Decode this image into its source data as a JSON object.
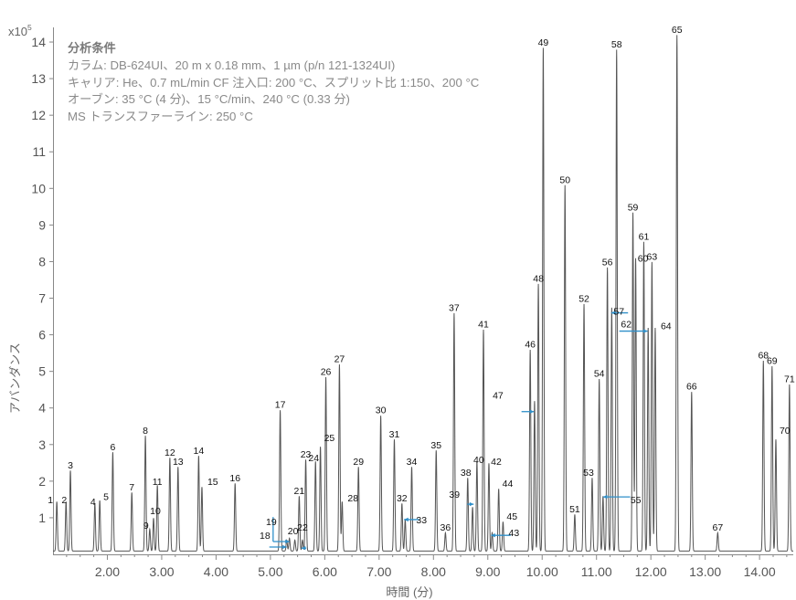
{
  "chart_data": {
    "type": "line",
    "y_exponent_label": "x10",
    "y_exponent": "5",
    "xlabel": "時間 (分)",
    "ylabel": "アバンダンス",
    "xlim": [
      1.0,
      14.62
    ],
    "ylim": [
      0,
      14.4
    ],
    "x_ticks": [
      2.0,
      3.0,
      4.0,
      5.0,
      6.0,
      7.0,
      8.0,
      9.0,
      10.0,
      11.0,
      12.0,
      13.0,
      14.0
    ],
    "x_tick_labels": [
      "2.00",
      "3.00",
      "4.00",
      "5.00",
      "6.00",
      "7.00",
      "8.00",
      "9.00",
      "10.00",
      "11.00",
      "12.00",
      "13.00",
      "14.00"
    ],
    "y_ticks": [
      1,
      2,
      3,
      4,
      5,
      6,
      7,
      8,
      9,
      10,
      11,
      12,
      13,
      14
    ],
    "y_tick_labels": [
      "1",
      "2",
      "3",
      "4",
      "5",
      "6",
      "7",
      "8",
      "9",
      "10",
      "11",
      "12",
      "13",
      "14"
    ],
    "line_color": "#555555",
    "arrow_color": "#2f8fc9",
    "conditions": {
      "title": "分析条件",
      "lines": [
        "カラム: DB-624UI、20 m x 0.18 mm、1 µm (p/n 121-1324UI)",
        "キャリア: He、0.7 mL/min CF 注入口: 200 °C、スプリット比 1:150、200 °C",
        "オーブン: 35 °C (4 分)、15 °C/min、240 °C (0.33 分)",
        "MS トランスファーライン: 250 °C"
      ]
    },
    "peaks": [
      {
        "label": "1",
        "rt": 1.07,
        "height": 1.35
      },
      {
        "label": "2",
        "rt": 1.24,
        "height": 1.35
      },
      {
        "label": "3",
        "rt": 1.32,
        "height": 2.2
      },
      {
        "label": "4",
        "rt": 1.77,
        "height": 1.3
      },
      {
        "label": "5",
        "rt": 1.86,
        "height": 1.38
      },
      {
        "label": "6",
        "rt": 2.1,
        "height": 2.7
      },
      {
        "label": "7",
        "rt": 2.45,
        "height": 1.6
      },
      {
        "label": "8",
        "rt": 2.7,
        "height": 3.15
      },
      {
        "label": "9",
        "rt": 2.78,
        "height": 0.6
      },
      {
        "label": "10",
        "rt": 2.85,
        "height": 0.9
      },
      {
        "label": "11",
        "rt": 2.92,
        "height": 1.8
      },
      {
        "label": "12",
        "rt": 3.15,
        "height": 2.55
      },
      {
        "label": "13",
        "rt": 3.3,
        "height": 2.3
      },
      {
        "label": "14",
        "rt": 3.68,
        "height": 2.6
      },
      {
        "label": "15",
        "rt": 3.74,
        "height": 1.75
      },
      {
        "label": "16",
        "rt": 4.35,
        "height": 1.85
      },
      {
        "label": "17",
        "rt": 5.18,
        "height": 3.85
      },
      {
        "label": "18",
        "rt": 5.3,
        "height": 0.3
      },
      {
        "label": "19",
        "rt": 5.35,
        "height": 0.35
      },
      {
        "label": "20",
        "rt": 5.45,
        "height": 0.3
      },
      {
        "label": "21",
        "rt": 5.53,
        "height": 1.5
      },
      {
        "label": "22",
        "rt": 5.59,
        "height": 0.3
      },
      {
        "label": "23",
        "rt": 5.65,
        "height": 2.5
      },
      {
        "label": "24",
        "rt": 5.83,
        "height": 2.45
      },
      {
        "label": "25",
        "rt": 5.92,
        "height": 2.85
      },
      {
        "label": "26",
        "rt": 6.02,
        "height": 4.75
      },
      {
        "label": "27",
        "rt": 6.27,
        "height": 5.1
      },
      {
        "label": "28",
        "rt": 6.32,
        "height": 1.35
      },
      {
        "label": "29",
        "rt": 6.62,
        "height": 2.3
      },
      {
        "label": "30",
        "rt": 7.03,
        "height": 3.7
      },
      {
        "label": "31",
        "rt": 7.28,
        "height": 3.05
      },
      {
        "label": "32",
        "rt": 7.42,
        "height": 1.3
      },
      {
        "label": "33",
        "rt": 7.48,
        "height": 0.85
      },
      {
        "label": "34",
        "rt": 7.6,
        "height": 2.3
      },
      {
        "label": "35",
        "rt": 8.05,
        "height": 2.75
      },
      {
        "label": "36",
        "rt": 8.22,
        "height": 0.5
      },
      {
        "label": "37",
        "rt": 8.38,
        "height": 6.5
      },
      {
        "label": "38",
        "rt": 8.63,
        "height": 2.0
      },
      {
        "label": "39",
        "rt": 8.72,
        "height": 1.2
      },
      {
        "label": "40",
        "rt": 8.8,
        "height": 2.45
      },
      {
        "label": "41",
        "rt": 8.92,
        "height": 6.05
      },
      {
        "label": "42",
        "rt": 9.02,
        "height": 2.4
      },
      {
        "label": "43",
        "rt": 9.08,
        "height": 0.5
      },
      {
        "label": "44",
        "rt": 9.2,
        "height": 1.7
      },
      {
        "label": "45",
        "rt": 9.28,
        "height": 0.8
      },
      {
        "label": "46",
        "rt": 9.78,
        "height": 5.5
      },
      {
        "label": "47",
        "rt": 9.86,
        "height": 4.1
      },
      {
        "label": "48",
        "rt": 9.93,
        "height": 7.3
      },
      {
        "label": "49",
        "rt": 10.02,
        "height": 13.75
      },
      {
        "label": "50",
        "rt": 10.42,
        "height": 10.0
      },
      {
        "label": "51",
        "rt": 10.6,
        "height": 1.0
      },
      {
        "label": "52",
        "rt": 10.77,
        "height": 6.75
      },
      {
        "label": "53",
        "rt": 10.92,
        "height": 2.0
      },
      {
        "label": "54",
        "rt": 11.05,
        "height": 4.7
      },
      {
        "label": "55",
        "rt": 11.12,
        "height": 1.5
      },
      {
        "label": "56",
        "rt": 11.2,
        "height": 7.75
      },
      {
        "label": "57",
        "rt": 11.28,
        "height": 6.65
      },
      {
        "label": "58",
        "rt": 11.37,
        "height": 13.7
      },
      {
        "label": "59",
        "rt": 11.67,
        "height": 9.25
      },
      {
        "label": "60",
        "rt": 11.72,
        "height": 8.0
      },
      {
        "label": "61",
        "rt": 11.87,
        "height": 8.45
      },
      {
        "label": "62",
        "rt": 11.95,
        "height": 6.1
      },
      {
        "label": "63",
        "rt": 12.02,
        "height": 7.9
      },
      {
        "label": "64",
        "rt": 12.08,
        "height": 6.1
      },
      {
        "label": "65",
        "rt": 12.48,
        "height": 14.1
      },
      {
        "label": "66",
        "rt": 12.75,
        "height": 4.35
      },
      {
        "label": "67",
        "rt": 13.23,
        "height": 0.5
      },
      {
        "label": "68",
        "rt": 14.07,
        "height": 5.2
      },
      {
        "label": "69",
        "rt": 14.23,
        "height": 5.05
      },
      {
        "label": "70",
        "rt": 14.3,
        "height": 3.05
      },
      {
        "label": "71",
        "rt": 14.55,
        "height": 4.55
      }
    ]
  }
}
